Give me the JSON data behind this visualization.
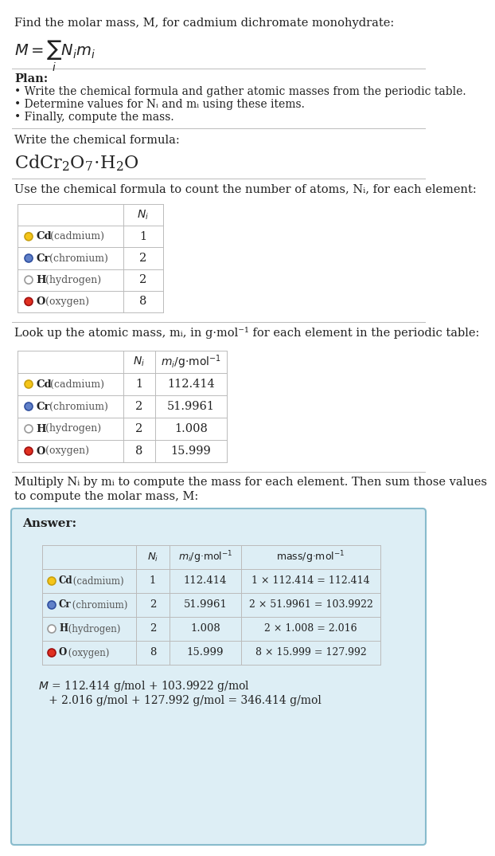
{
  "bg_color": "#ffffff",
  "text_color": "#222222",
  "gray_color": "#555555",
  "sep_color": "#bbbbbb",
  "title_line": "Find the molar mass, M, for cadmium dichromate monohydrate:",
  "plan_header": "Plan:",
  "plan_bullets": [
    "• Write the chemical formula and gather atomic masses from the periodic table.",
    "• Determine values for Nᵢ and mᵢ using these items.",
    "• Finally, compute the mass."
  ],
  "formula_section_header": "Write the chemical formula:",
  "count_header": "Use the chemical formula to count the number of atoms, Nᵢ, for each element:",
  "lookup_header": "Look up the atomic mass, mᵢ, in g·mol⁻¹ for each element in the periodic table:",
  "multiply_header1": "Multiply Nᵢ by mᵢ to compute the mass for each element. Then sum those values",
  "multiply_header2": "to compute the molar mass, M:",
  "element_symbols": [
    "Cd",
    "Cr",
    "H",
    "O"
  ],
  "element_names": [
    "(cadmium)",
    "(chromium)",
    "(hydrogen)",
    "(oxygen)"
  ],
  "Ni_values": [
    "1",
    "2",
    "2",
    "8"
  ],
  "mi_values": [
    "112.414",
    "51.9961",
    "1.008",
    "15.999"
  ],
  "mass_calcs": [
    "1 × 112.414 = 112.414",
    "2 × 51.9961 = 103.9922",
    "2 × 1.008 = 2.016",
    "8 × 15.999 = 127.992"
  ],
  "dot_colors": [
    "#f5c518",
    "#6080c8",
    "#ffffff",
    "#e03020"
  ],
  "dot_edge_colors": [
    "#c8a010",
    "#3050a0",
    "#999999",
    "#a01010"
  ],
  "answer_bg": "#ddeef5",
  "answer_edge": "#88bbcc",
  "table_line_color": "#bbbbbb",
  "final_line1": "M = 112.414 g/mol + 103.9922 g/mol",
  "final_line2": "+ 2.016 g/mol + 127.992 g/mol = 346.414 g/mol"
}
